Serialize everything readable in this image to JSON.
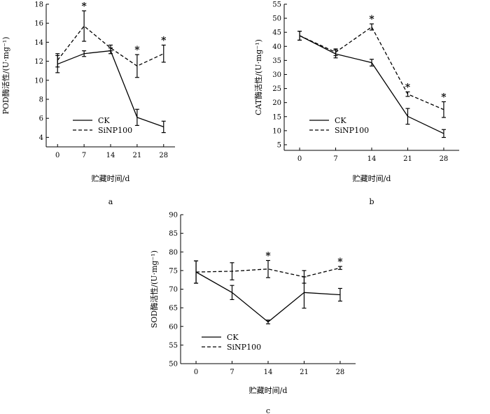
{
  "chart_data": [
    {
      "id": "a",
      "type": "line",
      "panel_label": "a",
      "xlabel": "贮藏时间/d",
      "ylabel": "POD酶活性/(U·mg⁻¹)",
      "x": [
        0,
        7,
        14,
        21,
        28
      ],
      "xlim": [
        -3,
        31
      ],
      "ylim": [
        3,
        18
      ],
      "yticks": [
        4,
        6,
        8,
        10,
        12,
        14,
        16,
        18
      ],
      "legend": "lower-left",
      "series": [
        {
          "name": "CK",
          "style": "solid",
          "values": [
            11.7,
            12.8,
            13.1,
            6.1,
            5.1
          ],
          "errors": [
            0.9,
            0.3,
            0.3,
            0.85,
            0.6
          ],
          "stars": [
            false,
            false,
            false,
            false,
            false
          ]
        },
        {
          "name": "SiNP100",
          "style": "dashed",
          "values": [
            12.1,
            15.7,
            13.4,
            11.5,
            12.8
          ],
          "errors": [
            0.7,
            1.6,
            0.3,
            1.2,
            0.9
          ],
          "stars": [
            false,
            true,
            false,
            true,
            true
          ]
        }
      ]
    },
    {
      "id": "b",
      "type": "line",
      "panel_label": "b",
      "xlabel": "贮藏时间/d",
      "ylabel": "CAT酶活性/(U·mg⁻¹)",
      "x": [
        0,
        7,
        14,
        21,
        28
      ],
      "xlim": [
        -3,
        31
      ],
      "ylim": [
        3,
        55
      ],
      "yticks": [
        5,
        10,
        15,
        20,
        25,
        30,
        35,
        40,
        45,
        50,
        55
      ],
      "legend": "lower-left",
      "series": [
        {
          "name": "CK",
          "style": "solid",
          "values": [
            43.8,
            37.3,
            34.2,
            15.1,
            9.0
          ],
          "errors": [
            1.6,
            1.4,
            1.2,
            2.8,
            1.4
          ],
          "stars": [
            false,
            false,
            false,
            false,
            false
          ]
        },
        {
          "name": "SiNP100",
          "style": "dashed",
          "values": [
            43.8,
            37.9,
            46.9,
            23.0,
            17.5
          ],
          "errors": [
            1.6,
            1.2,
            1.1,
            0.8,
            2.8
          ],
          "stars": [
            false,
            false,
            true,
            true,
            true
          ]
        }
      ]
    },
    {
      "id": "c",
      "type": "line",
      "panel_label": "c",
      "xlabel": "贮藏时间/d",
      "ylabel": "SOD酶活性/(U·mg⁻¹)",
      "x": [
        0,
        7,
        14,
        21,
        28
      ],
      "xlim": [
        -3,
        31
      ],
      "ylim": [
        50,
        90
      ],
      "yticks": [
        50,
        55,
        60,
        65,
        70,
        75,
        80,
        85,
        90
      ],
      "legend": "lower-left",
      "series": [
        {
          "name": "CK",
          "style": "solid",
          "values": [
            74.6,
            69.1,
            61.2,
            69.1,
            68.5
          ],
          "errors": [
            3.0,
            1.9,
            0.5,
            4.2,
            1.7
          ],
          "stars": [
            false,
            false,
            false,
            false,
            false
          ]
        },
        {
          "name": "SiNP100",
          "style": "dashed",
          "values": [
            74.6,
            74.8,
            75.4,
            73.3,
            75.7
          ],
          "errors": [
            3.0,
            2.3,
            2.3,
            1.7,
            0.4
          ],
          "stars": [
            false,
            false,
            true,
            false,
            true
          ]
        }
      ]
    }
  ]
}
